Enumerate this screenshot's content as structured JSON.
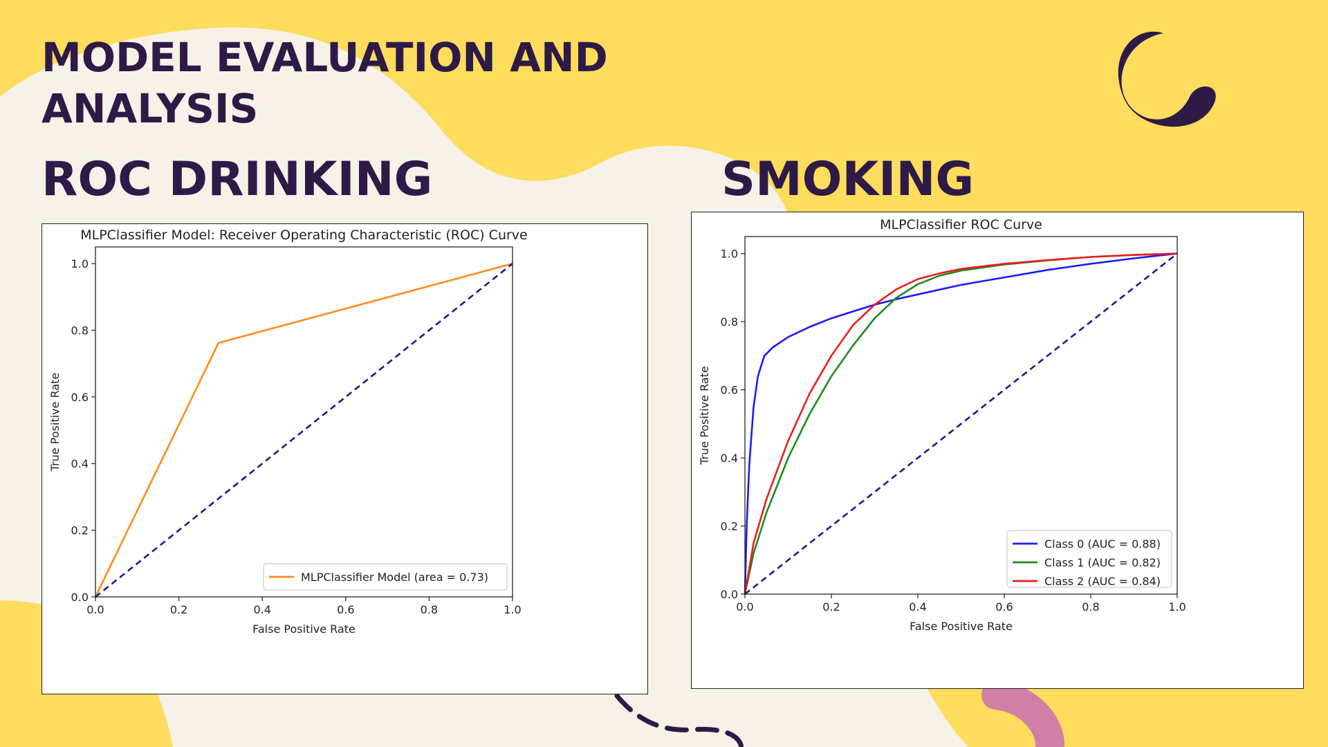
{
  "slide": {
    "title_line_1": "MODEL EVALUATION AND",
    "title_line_2": "ANALYSIS",
    "heading_left": "ROC DRINKING",
    "heading_right": "SMOKING",
    "colors": {
      "background": "#fedc5d",
      "cream": "#f6f2e8",
      "text_dark": "#2e1a47",
      "accent_pink": "#d17fa4"
    },
    "icons": [
      "crescent-moon-icon",
      "dashed-curve-decoration",
      "pink-arc-decoration"
    ]
  },
  "chart_data": [
    {
      "type": "line",
      "title": "MLPClassifier Model: Receiver Operating Characteristic (ROC) Curve",
      "xlabel": "False Positive Rate",
      "ylabel": "True Positive Rate",
      "xlim": [
        0.0,
        1.0
      ],
      "ylim": [
        0.0,
        1.05
      ],
      "xticks": [
        "0.0",
        "0.2",
        "0.4",
        "0.6",
        "0.8",
        "1.0"
      ],
      "yticks": [
        "0.0",
        "0.2",
        "0.4",
        "0.6",
        "0.8",
        "1.0"
      ],
      "grid": false,
      "legend_position": "lower right",
      "series": [
        {
          "name": "MLPClassifier Model (area = 0.73)",
          "color": "#ff8c1a",
          "style": "solid",
          "points": [
            [
              0,
              0
            ],
            [
              0.295,
              0.762
            ],
            [
              1,
              1
            ]
          ]
        },
        {
          "name": "",
          "color": "#1a1a8c",
          "style": "dashed",
          "points": [
            [
              0,
              0
            ],
            [
              1,
              1
            ]
          ]
        }
      ]
    },
    {
      "type": "line",
      "title": "MLPClassifier ROC Curve",
      "xlabel": "False Positive Rate",
      "ylabel": "True Positive Rate",
      "xlim": [
        0.0,
        1.0
      ],
      "ylim": [
        0.0,
        1.05
      ],
      "xticks": [
        "0.0",
        "0.2",
        "0.4",
        "0.6",
        "0.8",
        "1.0"
      ],
      "yticks": [
        "0.0",
        "0.2",
        "0.4",
        "0.6",
        "0.8",
        "1.0"
      ],
      "grid": false,
      "legend_position": "lower right",
      "series": [
        {
          "name": "Class 0 (AUC = 0.88)",
          "color": "#1a1aff",
          "style": "solid",
          "points": [
            [
              0,
              0
            ],
            [
              0.004,
              0.2
            ],
            [
              0.01,
              0.38
            ],
            [
              0.02,
              0.55
            ],
            [
              0.03,
              0.64
            ],
            [
              0.045,
              0.7
            ],
            [
              0.065,
              0.725
            ],
            [
              0.1,
              0.755
            ],
            [
              0.15,
              0.785
            ],
            [
              0.2,
              0.81
            ],
            [
              0.25,
              0.83
            ],
            [
              0.3,
              0.85
            ],
            [
              0.35,
              0.866
            ],
            [
              0.4,
              0.88
            ],
            [
              0.5,
              0.908
            ],
            [
              0.6,
              0.93
            ],
            [
              0.7,
              0.952
            ],
            [
              0.8,
              0.97
            ],
            [
              0.9,
              0.986
            ],
            [
              1,
              1
            ]
          ]
        },
        {
          "name": "Class 1 (AUC = 0.82)",
          "color": "#1a8c1a",
          "style": "solid",
          "points": [
            [
              0,
              0
            ],
            [
              0.02,
              0.12
            ],
            [
              0.05,
              0.24
            ],
            [
              0.1,
              0.4
            ],
            [
              0.15,
              0.53
            ],
            [
              0.2,
              0.64
            ],
            [
              0.25,
              0.73
            ],
            [
              0.3,
              0.81
            ],
            [
              0.35,
              0.87
            ],
            [
              0.4,
              0.91
            ],
            [
              0.45,
              0.935
            ],
            [
              0.5,
              0.95
            ],
            [
              0.6,
              0.968
            ],
            [
              0.7,
              0.98
            ],
            [
              0.8,
              0.99
            ],
            [
              0.9,
              0.996
            ],
            [
              1,
              1
            ]
          ]
        },
        {
          "name": "Class 2 (AUC = 0.84)",
          "color": "#ee1c1c",
          "style": "solid",
          "points": [
            [
              0,
              0
            ],
            [
              0.02,
              0.15
            ],
            [
              0.05,
              0.28
            ],
            [
              0.1,
              0.45
            ],
            [
              0.15,
              0.59
            ],
            [
              0.2,
              0.7
            ],
            [
              0.25,
              0.79
            ],
            [
              0.3,
              0.85
            ],
            [
              0.35,
              0.895
            ],
            [
              0.4,
              0.925
            ],
            [
              0.45,
              0.942
            ],
            [
              0.5,
              0.955
            ],
            [
              0.6,
              0.97
            ],
            [
              0.7,
              0.981
            ],
            [
              0.8,
              0.99
            ],
            [
              0.9,
              0.996
            ],
            [
              1,
              1
            ]
          ]
        },
        {
          "name": "",
          "color": "#1a1a8c",
          "style": "dashed",
          "points": [
            [
              0,
              0
            ],
            [
              1,
              1
            ]
          ]
        }
      ]
    }
  ]
}
